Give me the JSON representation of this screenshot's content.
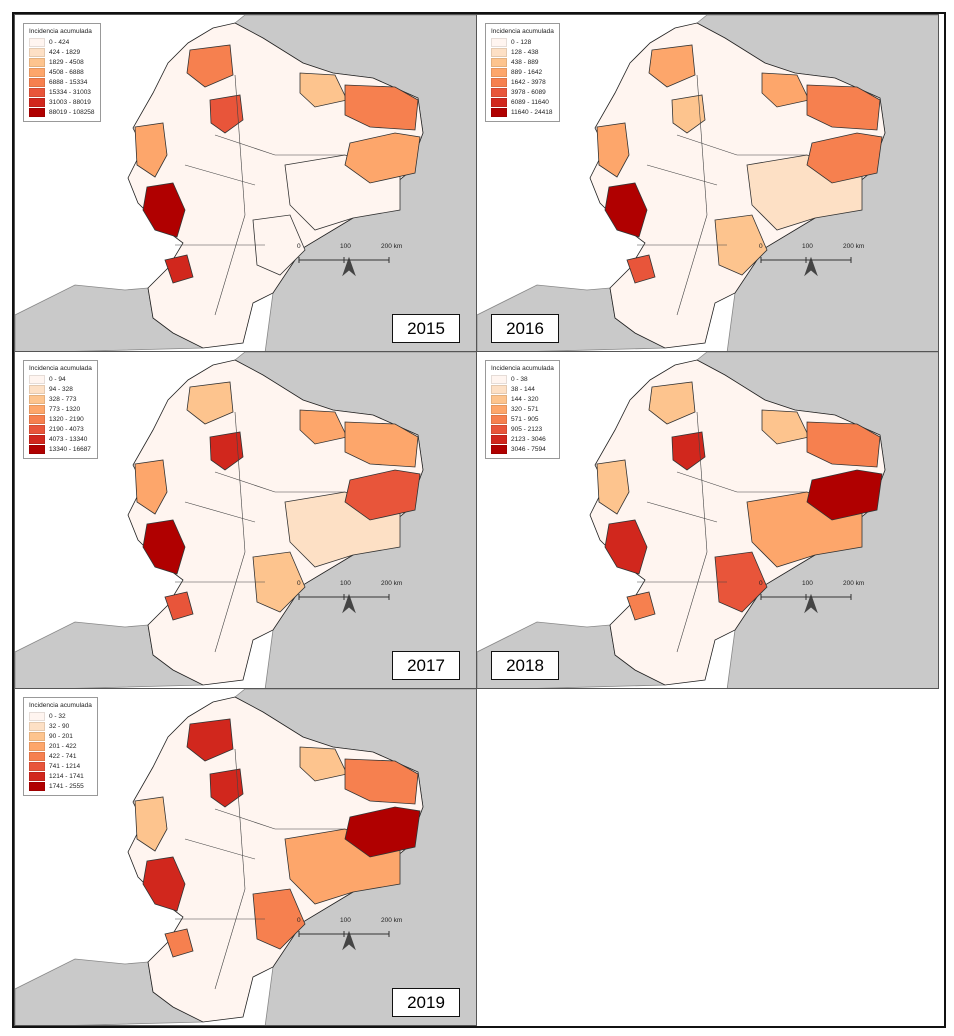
{
  "legend_title": "Incidencia acumulada",
  "class_colors": [
    "#fff5f0",
    "#fde0c5",
    "#fdc48e",
    "#fda66b",
    "#f6804f",
    "#e8553a",
    "#d1271d",
    "#b00000"
  ],
  "scale_bar": {
    "labels": [
      "0",
      "100",
      "200 km"
    ]
  },
  "north_arrow": "north-arrow-icon",
  "maps": [
    {
      "year": "2015",
      "legend": [
        "0 - 424",
        "424 - 1829",
        "1829 - 4508",
        "4508 - 6888",
        "6888 - 15334",
        "15334 - 31003",
        "31003 - 88019",
        "88019 - 108258"
      ],
      "region_classes": [
        4,
        5,
        2,
        4,
        0,
        7,
        3,
        6,
        0,
        3
      ]
    },
    {
      "year": "2016",
      "legend": [
        "0 - 128",
        "128 - 438",
        "438 - 889",
        "889 - 1642",
        "1642 - 3978",
        "3978 - 6089",
        "6089 - 11640",
        "11640 - 24418"
      ],
      "region_classes": [
        3,
        2,
        3,
        4,
        1,
        7,
        3,
        5,
        2,
        4
      ]
    },
    {
      "year": "2017",
      "legend": [
        "0 - 94",
        "94 - 328",
        "328 - 773",
        "773 - 1320",
        "1320 - 2190",
        "2190 - 4073",
        "4073 - 13340",
        "13340 - 16687"
      ],
      "region_classes": [
        2,
        6,
        3,
        3,
        1,
        7,
        3,
        5,
        2,
        5
      ]
    },
    {
      "year": "2018",
      "legend": [
        "0 - 38",
        "38 - 144",
        "144 - 320",
        "320 - 571",
        "571 - 905",
        "905 - 2123",
        "2123 - 3046",
        "3046 - 7594"
      ],
      "region_classes": [
        2,
        6,
        2,
        4,
        3,
        6,
        2,
        4,
        5,
        7
      ]
    },
    {
      "year": "2019",
      "legend": [
        "0 - 32",
        "32 - 90",
        "90 - 201",
        "201 - 422",
        "422 - 741",
        "741 - 1214",
        "1214 - 1741",
        "1741 - 2555"
      ],
      "region_classes": [
        6,
        6,
        2,
        4,
        3,
        6,
        2,
        4,
        4,
        7
      ]
    }
  ]
}
